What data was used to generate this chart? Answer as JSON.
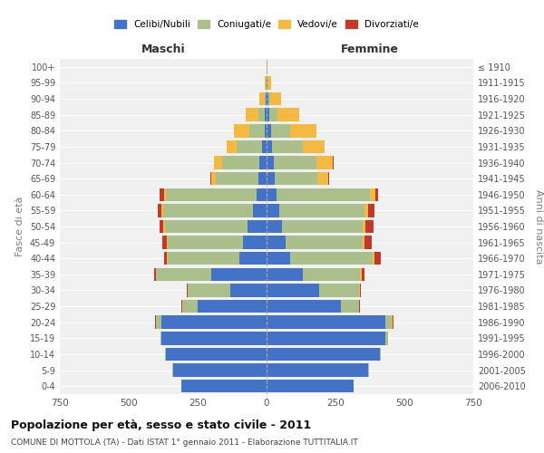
{
  "age_groups": [
    "0-4",
    "5-9",
    "10-14",
    "15-19",
    "20-24",
    "25-29",
    "30-34",
    "35-39",
    "40-44",
    "45-49",
    "50-54",
    "55-59",
    "60-64",
    "65-69",
    "70-74",
    "75-79",
    "80-84",
    "85-89",
    "90-94",
    "95-99",
    "100+"
  ],
  "birth_years": [
    "2006-2010",
    "2001-2005",
    "1996-2000",
    "1991-1995",
    "1986-1990",
    "1981-1985",
    "1976-1980",
    "1971-1975",
    "1966-1970",
    "1961-1965",
    "1956-1960",
    "1951-1955",
    "1946-1950",
    "1941-1945",
    "1936-1940",
    "1931-1935",
    "1926-1930",
    "1921-1925",
    "1916-1920",
    "1911-1915",
    "≤ 1910"
  ],
  "colors": {
    "celibe": "#4472C4",
    "coniugato": "#AABF8C",
    "vedovo": "#F4B942",
    "divorziato": "#C0392B"
  },
  "male": {
    "celibe": [
      310,
      340,
      365,
      380,
      380,
      250,
      130,
      200,
      100,
      85,
      70,
      50,
      35,
      30,
      25,
      15,
      7,
      5,
      2,
      1,
      0
    ],
    "coniugato": [
      0,
      1,
      2,
      5,
      20,
      55,
      155,
      200,
      260,
      275,
      300,
      325,
      330,
      155,
      135,
      95,
      55,
      25,
      5,
      2,
      0
    ],
    "vedovo": [
      0,
      0,
      0,
      0,
      2,
      2,
      1,
      2,
      2,
      2,
      4,
      5,
      8,
      15,
      30,
      35,
      55,
      45,
      20,
      5,
      0
    ],
    "divorziato": [
      0,
      0,
      0,
      0,
      1,
      2,
      3,
      5,
      10,
      15,
      15,
      15,
      15,
      5,
      2,
      0,
      0,
      0,
      0,
      0,
      0
    ]
  },
  "female": {
    "nubile": [
      315,
      370,
      410,
      430,
      430,
      270,
      190,
      130,
      85,
      70,
      55,
      45,
      35,
      30,
      25,
      20,
      15,
      10,
      5,
      2,
      0
    ],
    "coniugata": [
      0,
      1,
      3,
      10,
      25,
      65,
      145,
      210,
      300,
      280,
      295,
      310,
      340,
      155,
      155,
      110,
      70,
      30,
      8,
      2,
      0
    ],
    "vedova": [
      0,
      0,
      0,
      0,
      2,
      2,
      3,
      5,
      5,
      6,
      8,
      12,
      20,
      40,
      60,
      80,
      95,
      80,
      40,
      12,
      2
    ],
    "divorziata": [
      0,
      0,
      0,
      0,
      2,
      3,
      5,
      10,
      25,
      25,
      30,
      25,
      10,
      2,
      2,
      0,
      0,
      0,
      0,
      0,
      0
    ]
  },
  "xlim": 750,
  "title": "Popolazione per età, sesso e stato civile - 2011",
  "subtitle": "COMUNE DI MOTTOLA (TA) - Dati ISTAT 1° gennaio 2011 - Elaborazione TUTTITALIA.IT",
  "xlabel_left": "Maschi",
  "xlabel_right": "Femmine",
  "ylabel_left": "Fasce di età",
  "ylabel_right": "Anni di nascita",
  "background": "#f0f0f0",
  "legend_labels": [
    "Celibi/Nubili",
    "Coniugati/e",
    "Vedovi/e",
    "Divorziati/e"
  ]
}
